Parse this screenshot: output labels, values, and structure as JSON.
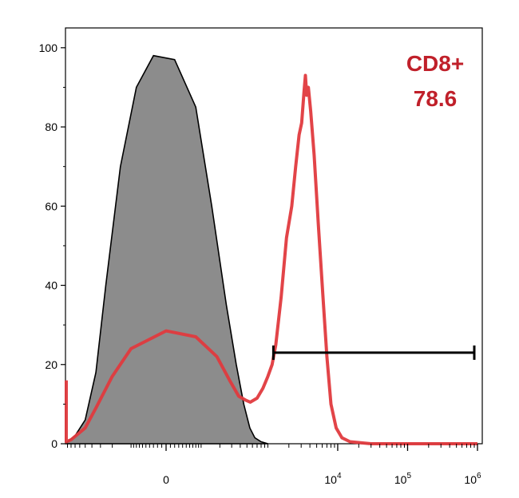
{
  "chart_data": {
    "type": "line",
    "title": "",
    "xlabel": "",
    "ylabel": "",
    "ylim": [
      0,
      105
    ],
    "grid": false,
    "y_ticks": [
      0,
      20,
      40,
      60,
      80,
      100
    ],
    "x_ticks": [
      {
        "label": "0",
        "exp": "",
        "value": 0
      },
      {
        "label": "10",
        "exp": "4",
        "value": 10000
      },
      {
        "label": "10",
        "exp": "5",
        "value": 100000
      },
      {
        "label": "10",
        "exp": "6",
        "value": 1000000
      }
    ],
    "x_scale": "biexponential",
    "annotations": [
      {
        "text": "CD8+",
        "color": "#c0202a"
      },
      {
        "text": "78.6",
        "color": "#c0202a"
      }
    ],
    "gate": {
      "x_start": 1200,
      "x_end": 900000,
      "y": 23
    },
    "series": [
      {
        "role": "isotype-control",
        "fill": "#8c8c8c",
        "line_color": "#000000",
        "points": [
          [
            -1500,
            0
          ],
          [
            -900,
            0.5
          ],
          [
            -700,
            2
          ],
          [
            -500,
            6
          ],
          [
            -350,
            18
          ],
          [
            -250,
            40
          ],
          [
            -150,
            70
          ],
          [
            -80,
            90
          ],
          [
            -30,
            98
          ],
          [
            20,
            97
          ],
          [
            80,
            85
          ],
          [
            150,
            60
          ],
          [
            250,
            35
          ],
          [
            350,
            20
          ],
          [
            450,
            10
          ],
          [
            550,
            4
          ],
          [
            650,
            1.5
          ],
          [
            800,
            0.5
          ],
          [
            1000,
            0
          ]
        ]
      },
      {
        "role": "cd8-stained",
        "line_color": "#e03a3e",
        "points": [
          [
            -5000,
            16
          ],
          [
            -4500,
            1
          ],
          [
            -3000,
            0.5
          ],
          [
            -1500,
            0.5
          ],
          [
            -800,
            1
          ],
          [
            -500,
            4
          ],
          [
            -350,
            9
          ],
          [
            -200,
            17
          ],
          [
            -100,
            24
          ],
          [
            0,
            28.5
          ],
          [
            80,
            27
          ],
          [
            180,
            22
          ],
          [
            280,
            16
          ],
          [
            380,
            12
          ],
          [
            480,
            11
          ],
          [
            560,
            10.5
          ],
          [
            700,
            11.5
          ],
          [
            850,
            14
          ],
          [
            1000,
            17
          ],
          [
            1150,
            20
          ],
          [
            1300,
            25
          ],
          [
            1550,
            37
          ],
          [
            1850,
            52
          ],
          [
            2200,
            60
          ],
          [
            2500,
            70
          ],
          [
            2800,
            78
          ],
          [
            3050,
            81
          ],
          [
            3300,
            89
          ],
          [
            3450,
            93
          ],
          [
            3600,
            88
          ],
          [
            3800,
            90
          ],
          [
            4100,
            84
          ],
          [
            4600,
            73
          ],
          [
            5300,
            55
          ],
          [
            6100,
            38
          ],
          [
            7000,
            22
          ],
          [
            8000,
            10
          ],
          [
            9500,
            4
          ],
          [
            11500,
            1.5
          ],
          [
            15000,
            0.5
          ],
          [
            30000,
            0
          ],
          [
            100000,
            0
          ],
          [
            1000000,
            0
          ]
        ]
      }
    ]
  }
}
